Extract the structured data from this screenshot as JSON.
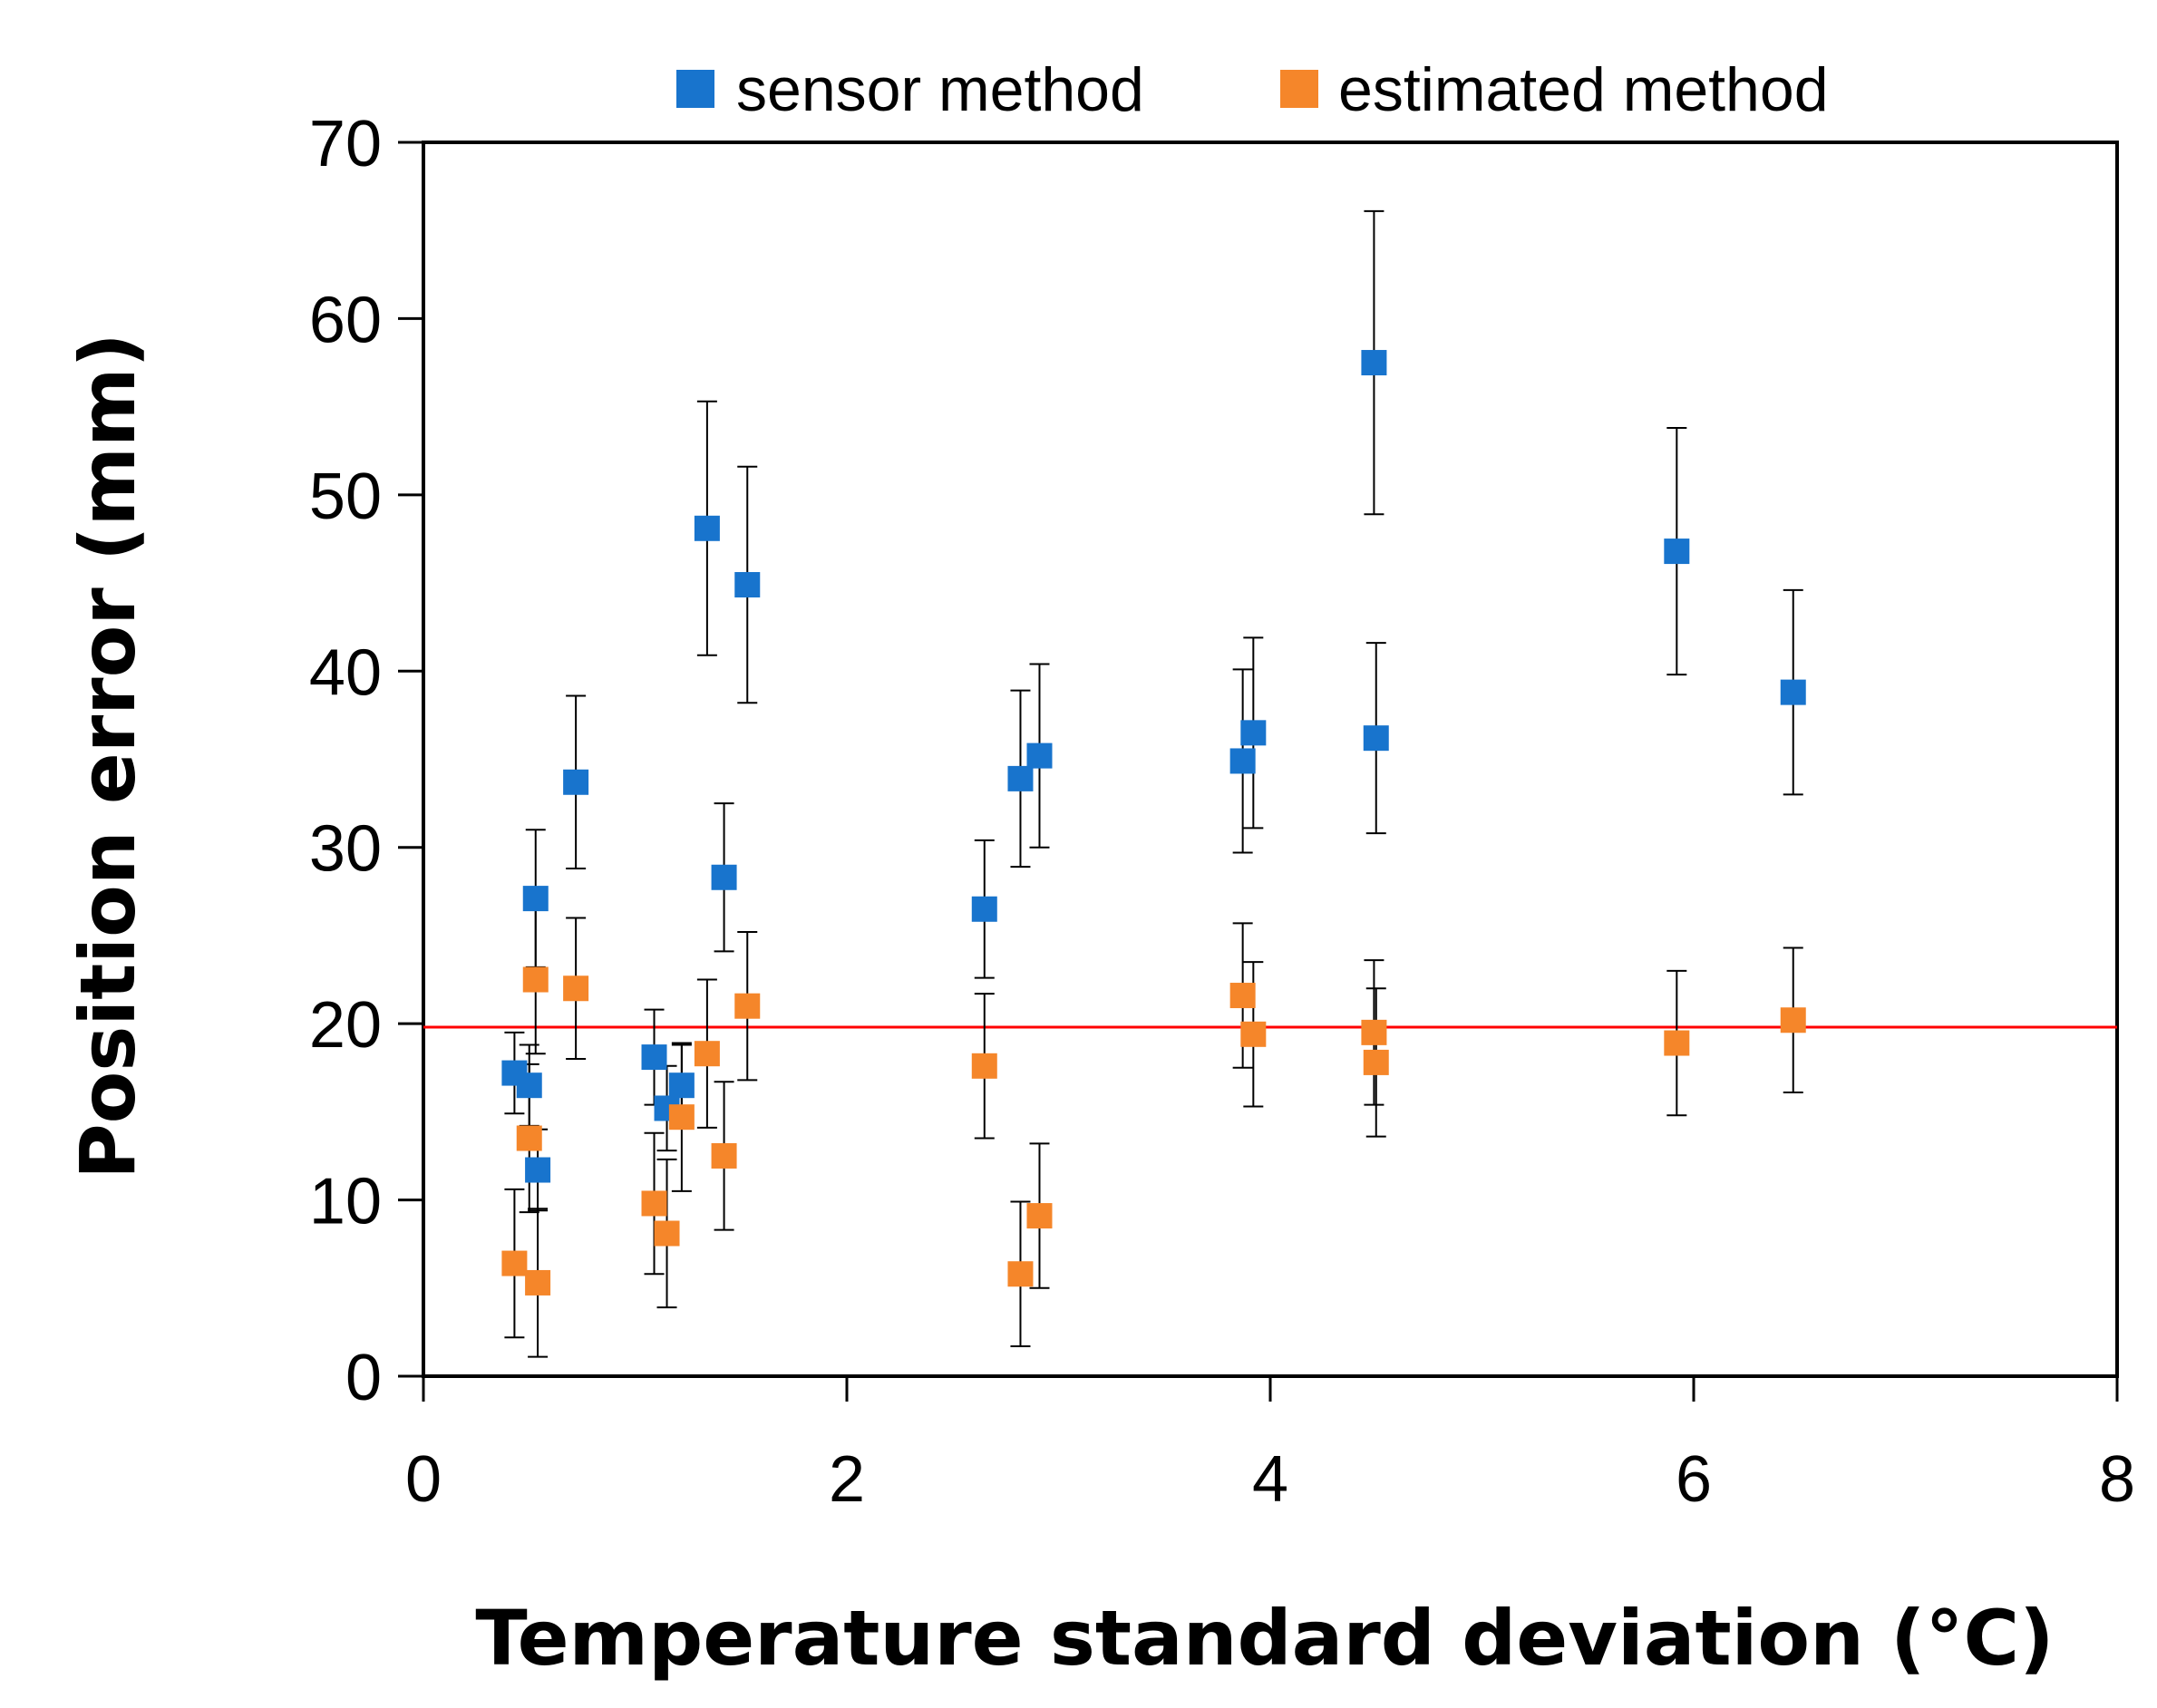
{
  "chart_data": {
    "type": "scatter",
    "title": "",
    "xlabel": "Temperature standard deviation (°C)",
    "ylabel": "Position error (mm)",
    "xlim": [
      0,
      8
    ],
    "ylim": [
      0,
      70
    ],
    "x_ticks": [
      0,
      2,
      4,
      6,
      8
    ],
    "y_ticks": [
      0,
      10,
      20,
      30,
      40,
      50,
      60,
      70
    ],
    "grid": false,
    "legend_position": "top",
    "reference_line": {
      "y": 19.8,
      "color": "#ff0000"
    },
    "series": [
      {
        "name": "sensor method",
        "color": "#1874cd",
        "points": [
          {
            "x": 0.43,
            "y": 17.2,
            "err": 2.3
          },
          {
            "x": 0.5,
            "y": 16.5,
            "err": 2.3
          },
          {
            "x": 0.53,
            "y": 27.1,
            "err": 3.9
          },
          {
            "x": 0.54,
            "y": 11.7,
            "err": 2.3
          },
          {
            "x": 0.72,
            "y": 33.7,
            "err": 4.9
          },
          {
            "x": 1.09,
            "y": 18.1,
            "err": 2.7
          },
          {
            "x": 1.15,
            "y": 15.2,
            "err": 2.4
          },
          {
            "x": 1.22,
            "y": 16.5,
            "err": 2.3
          },
          {
            "x": 1.34,
            "y": 48.1,
            "err": 7.2
          },
          {
            "x": 1.42,
            "y": 28.3,
            "err": 4.2
          },
          {
            "x": 1.53,
            "y": 44.9,
            "err": 6.7
          },
          {
            "x": 2.65,
            "y": 26.5,
            "err": 3.9
          },
          {
            "x": 2.82,
            "y": 33.9,
            "err": 5.0
          },
          {
            "x": 2.91,
            "y": 35.2,
            "err": 5.2
          },
          {
            "x": 3.87,
            "y": 34.9,
            "err": 5.2
          },
          {
            "x": 3.92,
            "y": 36.5,
            "err": 5.4
          },
          {
            "x": 4.49,
            "y": 57.5,
            "err": 8.6
          },
          {
            "x": 4.5,
            "y": 36.2,
            "err": 5.4
          },
          {
            "x": 5.92,
            "y": 46.8,
            "err": 7.0
          },
          {
            "x": 6.47,
            "y": 38.8,
            "err": 5.8
          }
        ]
      },
      {
        "name": "estimated method",
        "color": "#f5862a",
        "points": [
          {
            "x": 0.43,
            "y": 6.4,
            "err": 4.2
          },
          {
            "x": 0.5,
            "y": 13.5,
            "err": 4.2
          },
          {
            "x": 0.53,
            "y": 22.5,
            "err": 4.2
          },
          {
            "x": 0.54,
            "y": 5.3,
            "err": 4.2
          },
          {
            "x": 0.72,
            "y": 22.0,
            "err": 4.0
          },
          {
            "x": 1.09,
            "y": 9.8,
            "err": 4.0
          },
          {
            "x": 1.15,
            "y": 8.1,
            "err": 4.2
          },
          {
            "x": 1.22,
            "y": 14.7,
            "err": 4.2
          },
          {
            "x": 1.34,
            "y": 18.3,
            "err": 4.2
          },
          {
            "x": 1.42,
            "y": 12.5,
            "err": 4.2
          },
          {
            "x": 1.53,
            "y": 21.0,
            "err": 4.2
          },
          {
            "x": 2.65,
            "y": 17.6,
            "err": 4.1
          },
          {
            "x": 2.82,
            "y": 5.8,
            "err": 4.1
          },
          {
            "x": 2.91,
            "y": 9.1,
            "err": 4.1
          },
          {
            "x": 3.87,
            "y": 21.6,
            "err": 4.1
          },
          {
            "x": 3.92,
            "y": 19.4,
            "err": 4.1
          },
          {
            "x": 4.49,
            "y": 19.5,
            "err": 4.1
          },
          {
            "x": 4.5,
            "y": 17.8,
            "err": 4.2
          },
          {
            "x": 5.92,
            "y": 18.9,
            "err": 4.1
          },
          {
            "x": 6.47,
            "y": 20.2,
            "err": 4.1
          }
        ]
      }
    ]
  }
}
